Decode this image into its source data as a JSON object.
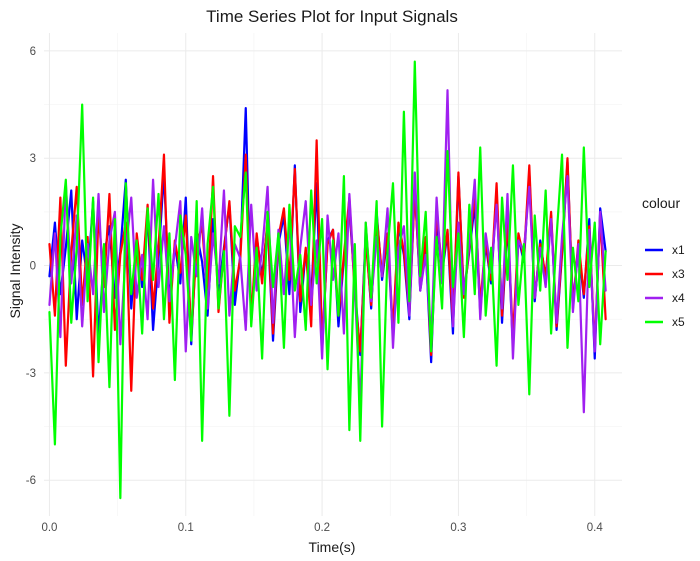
{
  "chart_data": {
    "type": "line",
    "title": "Time Series Plot for Input Signals",
    "xlabel": "Time(s)",
    "ylabel": "Signal Intensity",
    "xlim": [
      -0.004,
      0.42
    ],
    "ylim": [
      -7.0,
      6.5
    ],
    "x_ticks": [
      0.0,
      0.1,
      0.2,
      0.3,
      0.4
    ],
    "x_tick_labels": [
      "0.0",
      "0.1",
      "0.2",
      "0.3",
      "0.4"
    ],
    "y_ticks": [
      -6,
      -3,
      0,
      3,
      6
    ],
    "y_tick_labels": [
      "-6",
      "-3",
      "0",
      "3",
      "6"
    ],
    "grid": true,
    "legend_title": "colour",
    "legend_position": "right",
    "x_start": 0.0,
    "x_step": 0.004,
    "series": [
      {
        "name": "x1",
        "color": "#0000ff",
        "values": [
          -0.3,
          1.2,
          -0.8,
          0.5,
          2.1,
          -1.5,
          0.7,
          -0.4,
          1.8,
          -2.0,
          0.3,
          1.1,
          -0.9,
          0.4,
          2.4,
          -1.2,
          0.8,
          -0.6,
          1.5,
          -1.8,
          0.2,
          2.6,
          -1.0,
          0.6,
          -0.5,
          1.9,
          -2.2,
          0.9,
          0.1,
          -1.4,
          1.3,
          -0.7,
          0.5,
          1.7,
          -1.1,
          0.3,
          4.4,
          -1.6,
          0.8,
          -0.3,
          1.2,
          -2.1,
          0.6,
          1.4,
          -0.8,
          2.8,
          -1.3,
          0.4,
          -0.9,
          2.3,
          -2.4,
          0.7,
          1.0,
          -1.7,
          0.2,
          1.6,
          -0.6,
          -2.5,
          0.9,
          -1.2,
          1.5,
          -0.4,
          0.8,
          -2.0,
          1.1,
          0.3,
          -1.5,
          2.2,
          -0.7,
          0.5,
          -2.7,
          1.3,
          -0.2,
          0.9,
          -1.9,
          2.5,
          -0.8,
          0.4,
          1.7,
          -1.3,
          0.6,
          -0.5,
          2.0,
          -1.6,
          1.2,
          -2.3,
          0.8,
          0.1,
          2.6,
          -1.0,
          0.7,
          -0.4,
          1.4,
          -1.8,
          0.3,
          2.9,
          -1.1,
          0.5,
          -0.9,
          1.3,
          -2.6,
          1.6,
          0.4
        ]
      },
      {
        "name": "x3",
        "color": "#ff0000",
        "values": [
          0.6,
          -1.4,
          1.9,
          -2.8,
          0.4,
          2.2,
          -1.1,
          0.8,
          -3.1,
          1.5,
          -0.6,
          2.0,
          -1.8,
          0.3,
          1.2,
          -3.5,
          0.9,
          -0.4,
          1.7,
          -1.2,
          0.5,
          3.1,
          -1.6,
          0.7,
          -0.2,
          1.4,
          -2.0,
          0.6,
          1.1,
          -0.9,
          2.5,
          -1.3,
          0.4,
          1.8,
          -0.7,
          0.2,
          3.1,
          -1.5,
          0.9,
          -0.5,
          1.3,
          -1.9,
          0.8,
          1.6,
          -0.4,
          2.7,
          -1.0,
          0.5,
          -1.7,
          3.5,
          -2.2,
          0.6,
          1.0,
          -1.4,
          0.3,
          1.9,
          -0.8,
          -2.4,
          0.7,
          -1.1,
          1.4,
          -0.3,
          0.9,
          -1.8,
          1.2,
          0.4,
          -1.3,
          2.1,
          -0.6,
          0.8,
          -2.5,
          1.5,
          -0.1,
          1.0,
          -1.6,
          2.6,
          -0.9,
          0.5,
          2.0,
          -1.1,
          0.7,
          -0.4,
          2.3,
          -1.4,
          1.3,
          -2.0,
          0.9,
          0.2,
          2.8,
          -0.9,
          0.6,
          -0.3,
          1.5,
          -1.7,
          0.4,
          3.0,
          -1.2,
          0.7,
          -0.8,
          1.1,
          -2.3,
          1.4,
          -1.5
        ]
      },
      {
        "name": "x4",
        "color": "#a020f0",
        "values": [
          -1.1,
          0.9,
          -2.0,
          2.3,
          -0.5,
          1.4,
          -1.7,
          0.6,
          -0.8,
          2.0,
          -1.3,
          0.7,
          1.5,
          -2.2,
          0.4,
          1.9,
          -0.9,
          0.3,
          -1.5,
          2.4,
          -0.6,
          1.1,
          -1.0,
          0.5,
          1.8,
          -2.4,
          0.8,
          -0.3,
          1.6,
          -1.2,
          0.9,
          -0.5,
          2.1,
          -1.4,
          0.6,
          0.2,
          -1.8,
          1.7,
          -0.7,
          0.4,
          2.2,
          -1.6,
          1.0,
          -0.8,
          1.3,
          -2.0,
          0.5,
          1.8,
          -1.1,
          0.7,
          -2.6,
          1.4,
          -0.4,
          0.9,
          -1.9,
          2.0,
          -0.6,
          -4.0,
          1.2,
          -1.0,
          0.8,
          -0.3,
          1.6,
          -2.3,
          0.5,
          1.1,
          -1.4,
          2.6,
          -0.7,
          0.3,
          -2.1,
          1.9,
          -0.5,
          4.9,
          -1.7,
          1.2,
          -0.8,
          0.6,
          2.4,
          -1.5,
          0.9,
          -0.2,
          1.7,
          -1.2,
          2.0,
          -2.6,
          0.7,
          0.4,
          2.2,
          -0.9,
          0.5,
          -0.6,
          1.3,
          -1.6,
          0.8,
          2.5,
          -1.3,
          0.6,
          -4.1,
          1.0,
          -2.4,
          1.5,
          -0.7
        ]
      },
      {
        "name": "x5",
        "color": "#00ff00",
        "values": [
          -1.3,
          -5.0,
          0.8,
          2.4,
          -1.6,
          0.5,
          4.5,
          -1.0,
          1.9,
          -2.7,
          0.6,
          -3.4,
          1.3,
          -6.5,
          2.3,
          -0.8,
          0.7,
          -1.9,
          1.6,
          -0.4,
          2.0,
          -1.5,
          0.9,
          -3.2,
          1.4,
          0.3,
          -2.1,
          1.8,
          -4.9,
          0.6,
          2.2,
          -1.2,
          0.4,
          -4.2,
          1.1,
          0.8,
          2.6,
          -1.7,
          0.5,
          -2.6,
          1.5,
          -0.6,
          0.9,
          -2.3,
          1.7,
          -0.7,
          0.3,
          -1.8,
          2.1,
          -0.5,
          1.3,
          -2.9,
          0.7,
          -1.4,
          2.5,
          -4.6,
          0.6,
          -4.9,
          1.2,
          -0.9,
          1.8,
          -4.5,
          0.4,
          2.3,
          -1.6,
          4.3,
          -1.0,
          5.7,
          -0.3,
          1.5,
          -2.4,
          0.8,
          -1.2,
          3.2,
          -0.6,
          0.9,
          -2.0,
          1.7,
          -0.8,
          3.3,
          -1.4,
          0.5,
          -2.8,
          1.9,
          -0.4,
          2.8,
          -1.1,
          0.6,
          -3.6,
          1.4,
          -0.7,
          2.1,
          -1.9,
          0.8,
          3.1,
          -2.3,
          0.5,
          -1.0,
          3.3,
          -0.6,
          1.2,
          -2.2,
          0.4
        ]
      }
    ]
  }
}
